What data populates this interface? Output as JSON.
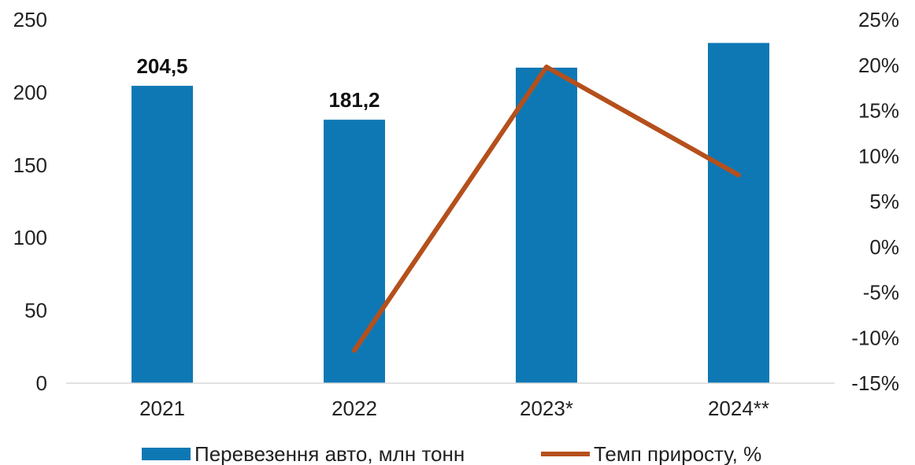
{
  "chart_data": {
    "type": "bar",
    "categories": [
      "2021",
      "2022",
      "2023*",
      "2024**"
    ],
    "series": [
      {
        "name": "Перевезення авто, млн тонн",
        "type": "bar",
        "axis": "left",
        "color": "#0E78B5",
        "values": [
          204.5,
          181.2,
          217,
          234
        ],
        "labels": [
          "204,5",
          "181,2",
          "",
          ""
        ]
      },
      {
        "name": "Темп приросту, %",
        "type": "line",
        "axis": "right",
        "color": "#B5501C",
        "values": [
          null,
          -11.4,
          19.8,
          7.9
        ]
      }
    ],
    "left_axis": {
      "min": 0,
      "max": 250,
      "ticks": [
        "0",
        "50",
        "100",
        "150",
        "200",
        "250"
      ],
      "tick_values": [
        0,
        50,
        100,
        150,
        200,
        250
      ]
    },
    "right_axis": {
      "min": -15,
      "max": 25,
      "ticks": [
        "-15%",
        "-10%",
        "-5%",
        "0%",
        "5%",
        "10%",
        "15%",
        "20%",
        "25%"
      ],
      "tick_values": [
        -15,
        -10,
        -5,
        0,
        5,
        10,
        15,
        20,
        25
      ]
    },
    "grid": false,
    "legend_position": "bottom"
  }
}
